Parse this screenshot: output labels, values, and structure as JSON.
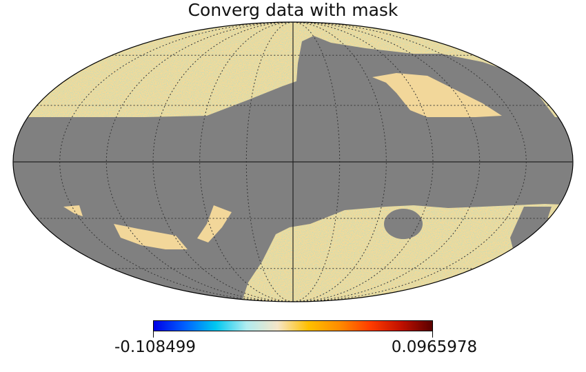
{
  "title": "Converg data with mask",
  "colorbar": {
    "min_label": "-0.108499",
    "max_label": "0.0965978",
    "colormap": [
      "#0000e6",
      "#0060ff",
      "#00c8f0",
      "#b0ecf0",
      "#f5e6c8",
      "#ffc000",
      "#ff8c00",
      "#ff3c00",
      "#c01000",
      "#5a0000"
    ]
  },
  "map": {
    "projection": "mollweide",
    "mask_color": "#808080",
    "graticule": {
      "meridian_step_deg": 30,
      "parallel_step_deg": 30
    }
  }
}
